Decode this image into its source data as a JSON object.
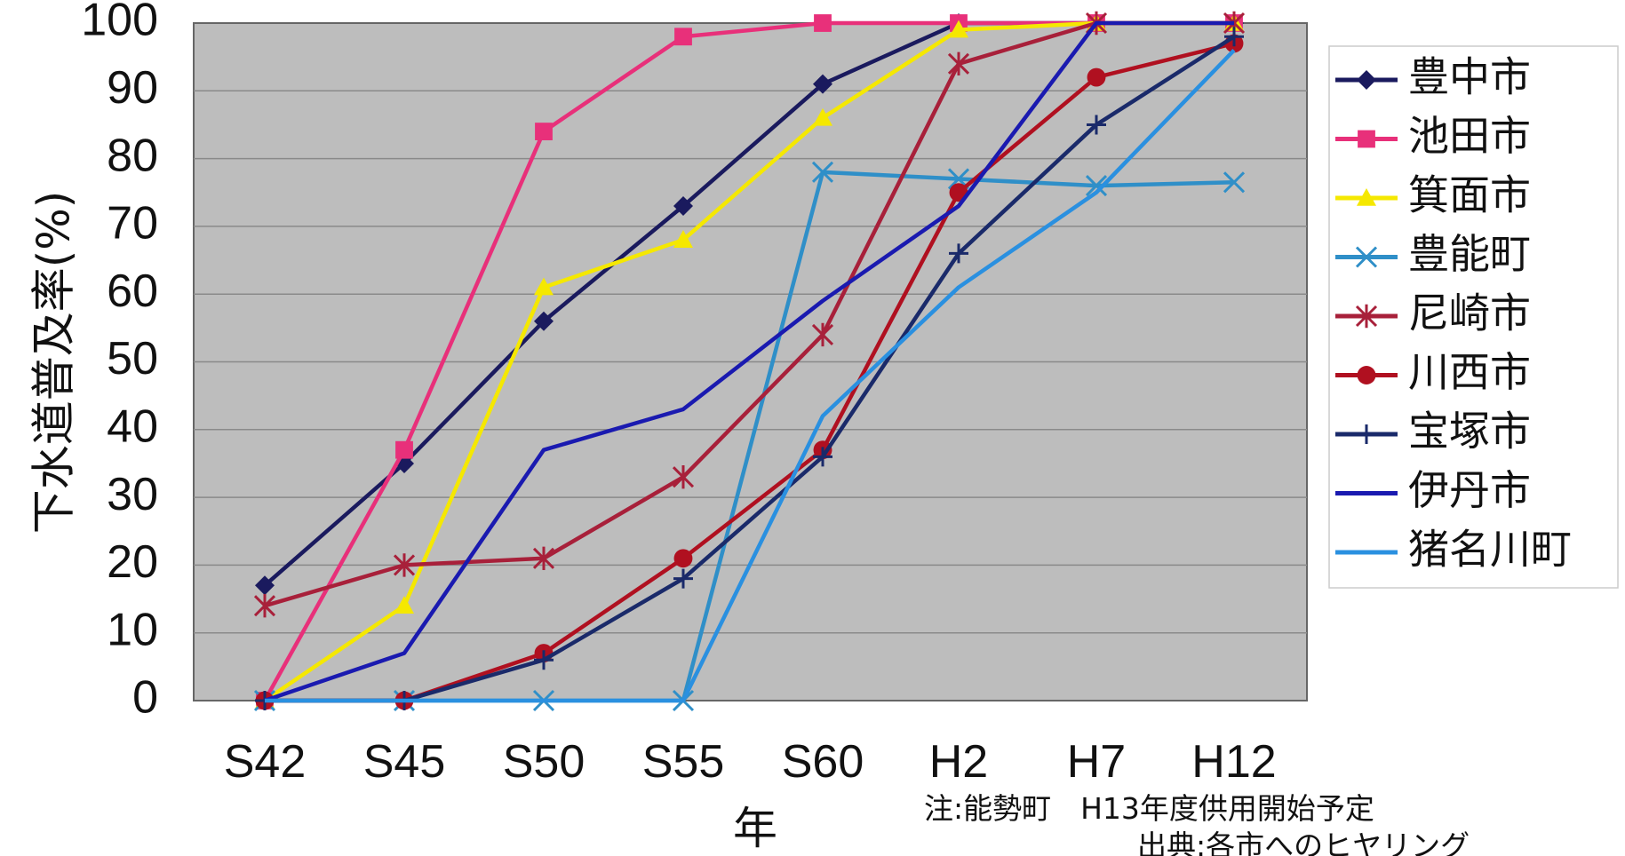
{
  "chart_data": {
    "type": "line",
    "title": "",
    "xlabel": "年",
    "ylabel": "下水道普及率(%)",
    "x": [
      "S42",
      "S45",
      "S50",
      "S55",
      "S60",
      "H2",
      "H7",
      "H12"
    ],
    "ylim": [
      0,
      100
    ],
    "yticks": [
      0,
      10,
      20,
      30,
      40,
      50,
      60,
      70,
      80,
      90,
      100
    ],
    "grid": true,
    "legend_position": "right",
    "series": [
      {
        "name": "豊中市",
        "color": "#1a1a5e",
        "marker": "diamond",
        "values": [
          17,
          35,
          56,
          73,
          91,
          100,
          100,
          100
        ]
      },
      {
        "name": "池田市",
        "color": "#e8307a",
        "marker": "square",
        "values": [
          0,
          37,
          84,
          98,
          100,
          100,
          100,
          100
        ]
      },
      {
        "name": "箕面市",
        "color": "#f5e800",
        "marker": "triangle",
        "values": [
          0,
          14,
          61,
          68,
          86,
          99,
          100,
          100
        ]
      },
      {
        "name": "豊能町",
        "color": "#2f8fc8",
        "marker": "x",
        "values": [
          0,
          0,
          0,
          0,
          78,
          77,
          76,
          76.5
        ]
      },
      {
        "name": "尼崎市",
        "color": "#a8203a",
        "marker": "asterisk",
        "values": [
          14,
          20,
          21,
          33,
          54,
          94,
          100,
          100
        ]
      },
      {
        "name": "川西市",
        "color": "#b01020",
        "marker": "circle",
        "values": [
          0,
          0,
          7,
          21,
          37,
          75,
          92,
          97
        ]
      },
      {
        "name": "宝塚市",
        "color": "#1a2a6a",
        "marker": "plus",
        "values": [
          0,
          0,
          6,
          18,
          36,
          66,
          85,
          98
        ]
      },
      {
        "name": "伊丹市",
        "color": "#1a1ab0",
        "marker": "none",
        "values": [
          0,
          7,
          37,
          43,
          59,
          73,
          100,
          100
        ]
      },
      {
        "name": "猪名川町",
        "color": "#2a90e0",
        "marker": "none",
        "values": [
          0,
          0,
          0,
          0,
          42,
          61,
          75,
          96
        ]
      }
    ],
    "annotations": [
      "注:能勢町　H13年度供用開始予定",
      "出典:各市へのヒヤリング"
    ]
  },
  "colors": {
    "plot_background": "#bdbdbd",
    "grid": "#8a8a8a"
  }
}
